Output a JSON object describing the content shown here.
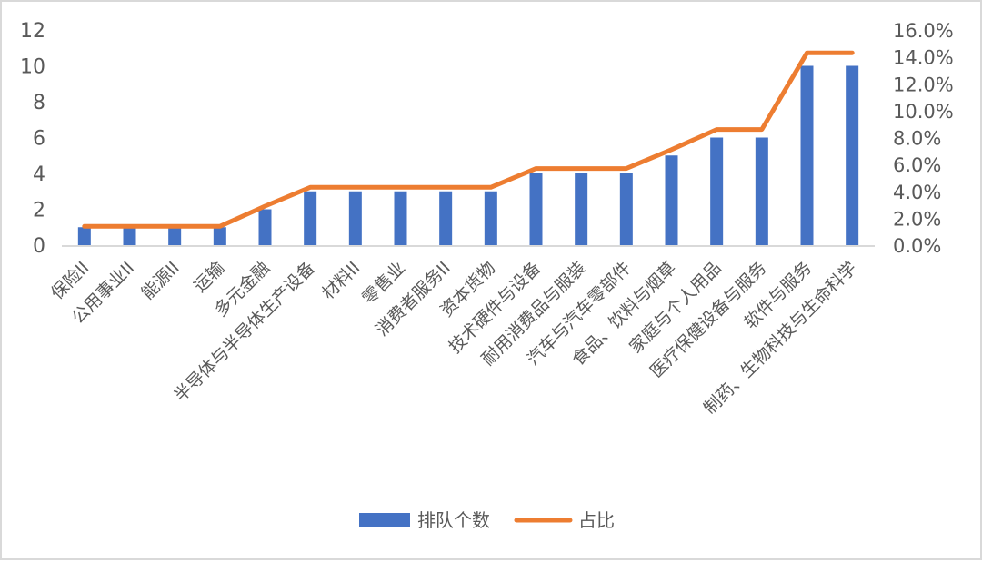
{
  "chart_data": {
    "type": "bar",
    "title": "",
    "xlabel": "",
    "ylabel": "",
    "ylabel_right": "",
    "categories": [
      "保险II",
      "公用事业II",
      "能源II",
      "运输",
      "多元金融",
      "半导体与半导体生产设备",
      "材料II",
      "零售业",
      "消费者服务II",
      "资本货物",
      "技术硬件与设备",
      "耐用消费品与服装",
      "汽车与汽车零部件",
      "食品、饮料与烟草",
      "家庭与个人用品",
      "医疗保健设备与服务",
      "软件与服务",
      "制药、生物科技与生命科学"
    ],
    "series": [
      {
        "name": "排队个数",
        "type": "bar",
        "axis": "left",
        "color": "#4472C4",
        "values": [
          1,
          1,
          1,
          1,
          2,
          3,
          3,
          3,
          3,
          3,
          4,
          4,
          4,
          5,
          6,
          6,
          10,
          10
        ]
      },
      {
        "name": "占比",
        "type": "line",
        "axis": "right",
        "color": "#ED7D31",
        "values": [
          1.4,
          1.4,
          1.4,
          1.4,
          2.9,
          4.3,
          4.3,
          4.3,
          4.3,
          4.3,
          5.7,
          5.7,
          5.7,
          7.1,
          8.6,
          8.6,
          14.3,
          14.3
        ],
        "unit": "%"
      }
    ],
    "ylim": [
      0,
      12
    ],
    "ylim_right": [
      0,
      16
    ],
    "yticks": [
      "0",
      "2",
      "4",
      "6",
      "8",
      "10",
      "12"
    ],
    "yticks_right": [
      "0.0%",
      "2.0%",
      "4.0%",
      "6.0%",
      "8.0%",
      "10.0%",
      "12.0%",
      "14.0%",
      "16.0%"
    ],
    "grid": false,
    "legend_position": "bottom",
    "legend": [
      {
        "label": "排队个数",
        "color": "#4472C4",
        "shape": "box"
      },
      {
        "label": "占比",
        "color": "#ED7D31",
        "shape": "line"
      }
    ]
  }
}
